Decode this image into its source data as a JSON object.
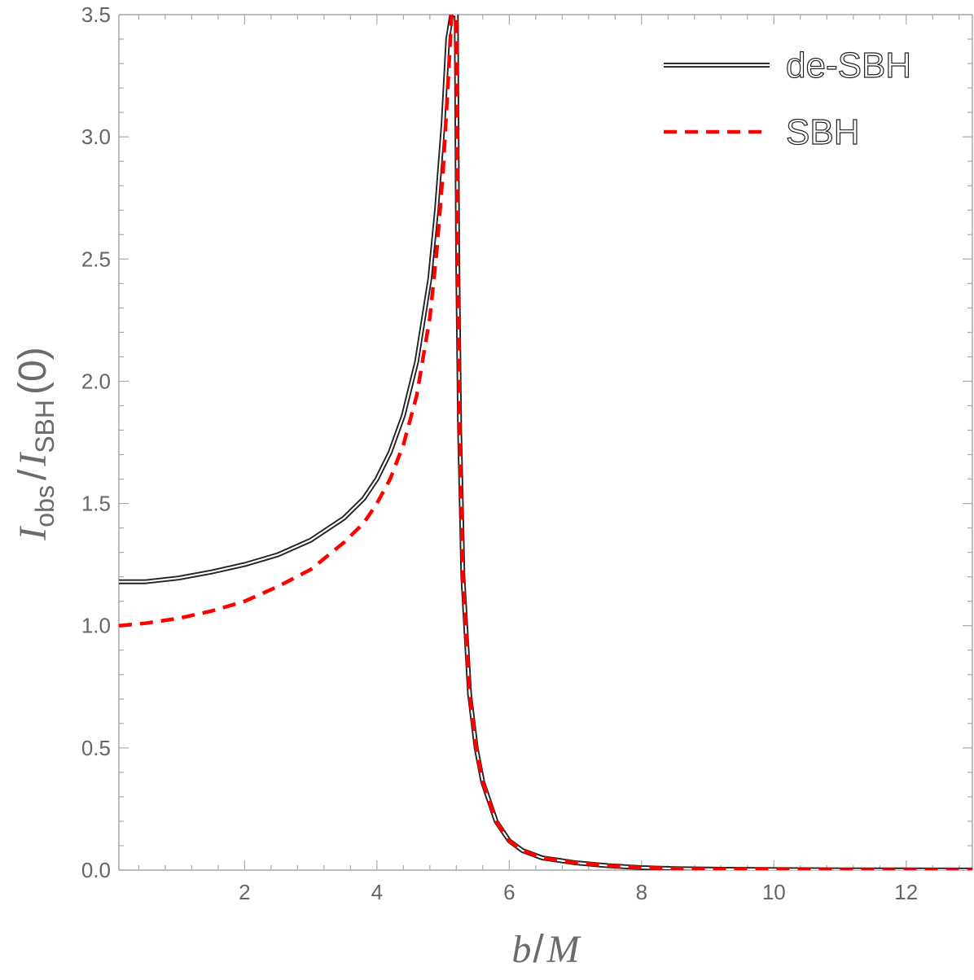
{
  "chart_data": {
    "type": "line",
    "title": "",
    "xlabel": "b/M",
    "ylabel": "I_obs / I_SBH(0)",
    "ylabel_parts": {
      "I1": "I",
      "sub1": "obs",
      "slash": "/",
      "I2": "I",
      "sub2": "SBH",
      "tail": "(0)"
    },
    "xlabel_parts": {
      "b": "b",
      "slash": "/",
      "M": "M"
    },
    "xlim": [
      0.1,
      13.0
    ],
    "ylim": [
      0.0,
      3.5
    ],
    "xticks": [
      2,
      4,
      6,
      8,
      10,
      12
    ],
    "xtick_labels": [
      "2",
      "4",
      "6",
      "8",
      "10",
      "12"
    ],
    "yticks": [
      0.0,
      0.5,
      1.0,
      1.5,
      2.0,
      2.5,
      3.0,
      3.5
    ],
    "ytick_labels": [
      "0.0",
      "0.5",
      "1.0",
      "1.5",
      "2.0",
      "2.5",
      "3.0",
      "3.5"
    ],
    "legend_position": "top-right",
    "series": [
      {
        "name": "de-SBH",
        "style": "solid-double",
        "color": "#222222",
        "x": [
          0.1,
          0.5,
          1.0,
          1.5,
          2.0,
          2.5,
          3.0,
          3.5,
          3.8,
          4.0,
          4.2,
          4.4,
          4.6,
          4.8,
          4.9,
          5.0,
          5.07,
          5.13,
          5.17,
          5.19,
          5.2,
          5.22,
          5.25,
          5.3,
          5.4,
          5.5,
          5.6,
          5.8,
          6.0,
          6.2,
          6.5,
          7.0,
          7.5,
          8.0,
          8.5,
          9.0,
          10.0,
          11.0,
          12.0,
          13.0
        ],
        "y": [
          1.18,
          1.18,
          1.195,
          1.22,
          1.25,
          1.29,
          1.35,
          1.44,
          1.52,
          1.6,
          1.71,
          1.86,
          2.08,
          2.42,
          2.7,
          3.05,
          3.4,
          3.5,
          3.5,
          3.5,
          3.5,
          2.5,
          1.8,
          1.2,
          0.72,
          0.5,
          0.36,
          0.2,
          0.12,
          0.08,
          0.05,
          0.03,
          0.018,
          0.01,
          0.006,
          0.004,
          0.002,
          0.001,
          0.0005,
          0.0002
        ]
      },
      {
        "name": "SBH",
        "style": "dashed",
        "color": "#ff0000",
        "x": [
          0.1,
          0.5,
          1.0,
          1.5,
          2.0,
          2.5,
          3.0,
          3.5,
          3.8,
          4.0,
          4.2,
          4.4,
          4.6,
          4.8,
          4.9,
          5.0,
          5.07,
          5.13,
          5.17,
          5.2,
          5.22,
          5.25,
          5.3,
          5.4,
          5.5,
          5.6,
          5.8,
          6.0,
          6.2,
          6.5,
          7.0,
          7.5,
          8.0,
          8.5,
          9.0,
          10.0,
          11.0,
          12.0,
          13.0
        ],
        "y": [
          1.0,
          1.01,
          1.03,
          1.06,
          1.1,
          1.16,
          1.23,
          1.34,
          1.42,
          1.5,
          1.6,
          1.74,
          1.94,
          2.26,
          2.52,
          2.86,
          3.2,
          3.5,
          3.5,
          3.5,
          2.5,
          1.8,
          1.2,
          0.72,
          0.5,
          0.36,
          0.2,
          0.12,
          0.08,
          0.05,
          0.03,
          0.018,
          0.01,
          0.006,
          0.004,
          0.002,
          0.001,
          0.0005,
          0.0002
        ]
      }
    ]
  }
}
